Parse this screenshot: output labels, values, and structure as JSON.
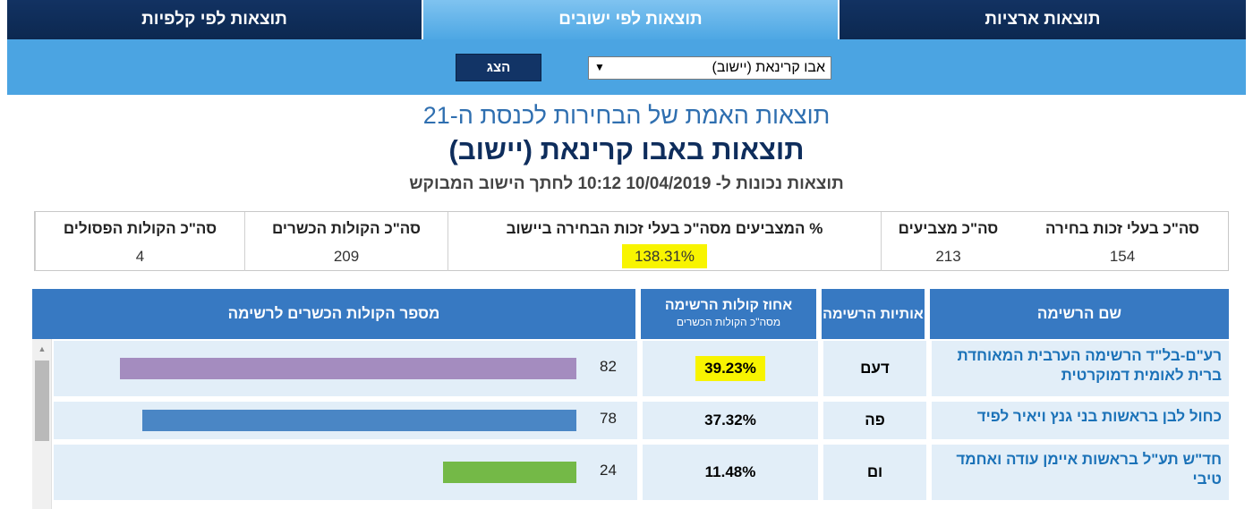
{
  "tabs": {
    "national": "תוצאות ארציות",
    "by_locality": "תוצאות לפי ישובים",
    "by_ballot": "תוצאות לפי קלפיות"
  },
  "controls": {
    "show_button": "הצג",
    "locality_select_value": "אבו קרינאת (יישוב)"
  },
  "header": {
    "title": "תוצאות האמת של הבחירות לכנסת ה-21",
    "subtitle": "תוצאות באבו קרינאת (יישוב)",
    "timestamp_line": "תוצאות נכונות ל- 10/04/2019 10:12 לחתך הישוב המבוקש"
  },
  "summary": {
    "eligible_label": "סה\"כ בעלי זכות בחירה",
    "eligible_value": "154",
    "voters_label": "סה\"כ מצביעים",
    "voters_value": "213",
    "turnout_label": "% המצביעים מסה\"כ בעלי זכות הבחירה ביישוב",
    "turnout_value": "138.31%",
    "valid_label": "סה\"כ הקולות הכשרים",
    "valid_value": "209",
    "invalid_label": "סה\"כ הקולות הפסולים",
    "invalid_value": "4"
  },
  "results": {
    "col_name": "שם הרשימה",
    "col_letters": "אותיות הרשימה",
    "col_pct": "אחוז קולות הרשימה",
    "col_pct_sub": "מסה\"כ הקולות הכשרים",
    "col_votes": "מספר הקולות הכשרים לרשימה",
    "rows": [
      {
        "name": "רע\"ם-בל\"ד הרשימה הערבית המאוחדת ברית לאומית דמוקרטית",
        "letters": "דעם",
        "pct": "39.23%",
        "votes": "82",
        "bar_fraction": 0.3923,
        "bar_color": "#a48cbf",
        "highlight": true
      },
      {
        "name": "כחול לבן בראשות בני גנץ ויאיר לפיד",
        "letters": "פה",
        "pct": "37.32%",
        "votes": "78",
        "bar_fraction": 0.3732,
        "bar_color": "#4a86c5",
        "highlight": false
      },
      {
        "name": "חד\"ש תע\"ל בראשות איימן עודה ואחמד טיבי",
        "letters": "ום",
        "pct": "11.48%",
        "votes": "24",
        "bar_fraction": 0.1148,
        "bar_color": "#74b947",
        "highlight": false
      }
    ]
  },
  "colors": {
    "tab_dark": "#123262",
    "tab_active": "#4da7e4",
    "header_blue": "#3779c2",
    "row_bg": "#e2eef8",
    "highlight": "#f8f400"
  }
}
